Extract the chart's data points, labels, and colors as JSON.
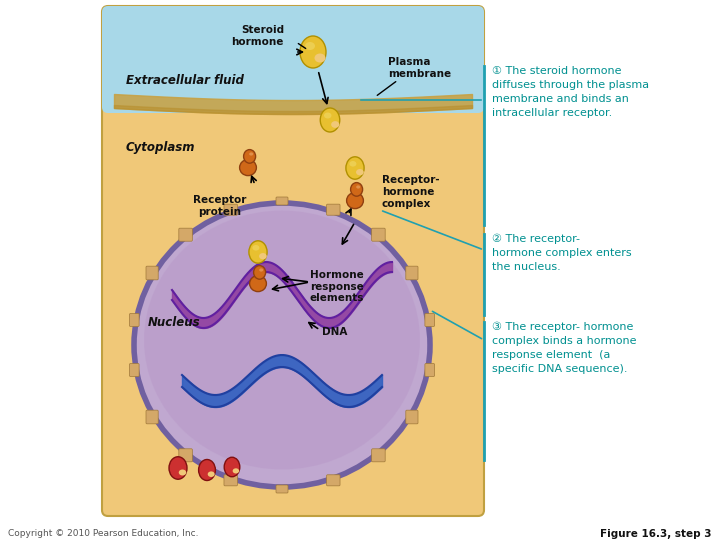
{
  "bg_color": "#ffffff",
  "extracellular_color": "#a8d8e8",
  "cytoplasm_color": "#f0c878",
  "nucleus_color": "#c0a8d0",
  "nucleus_border_color": "#7060a0",
  "nucleus_inner_color": "#b898c8",
  "text_color_black": "#111111",
  "text_color_teal": "#009090",
  "dna_purple": "#9040a0",
  "dna_blue": "#3060c0",
  "hormone_yellow": "#e8c030",
  "hormone_yellow_edge": "#b09000",
  "receptor_orange": "#d06818",
  "receptor_orange_edge": "#904010",
  "membrane_tan": "#c8a040",
  "pore_color": "#c8a060",
  "red_hormone": "#cc3030",
  "teal_line": "#20a0b0",
  "label_steroid": "Steroid\nhormone",
  "label_plasma": "Plasma\nmembrane",
  "label_extracellular": "Extracellular fluid",
  "label_cytoplasm": "Cytoplasm",
  "label_receptor_protein": "Receptor\nprotein",
  "label_receptor_hormone": "Receptor-\nhormone\ncomplex",
  "label_nucleus": "Nucleus",
  "label_hormone_response": "Hormone\nresponse\nelements",
  "label_dna": "DNA",
  "label1": "① The steroid hormone\ndiffuses through the plasma\nmembrane and binds an\nintracellular receptor.",
  "label2": "② The receptor-\nhormone complex enters\nthe nucleus.",
  "label3": "③ The receptor- hormone\ncomplex binds a hormone\nresponse element  (a\nspecific DNA sequence).",
  "copyright": "Copyright © 2010 Pearson Education, Inc.",
  "figure_label": "Figure 16.3, step 3"
}
